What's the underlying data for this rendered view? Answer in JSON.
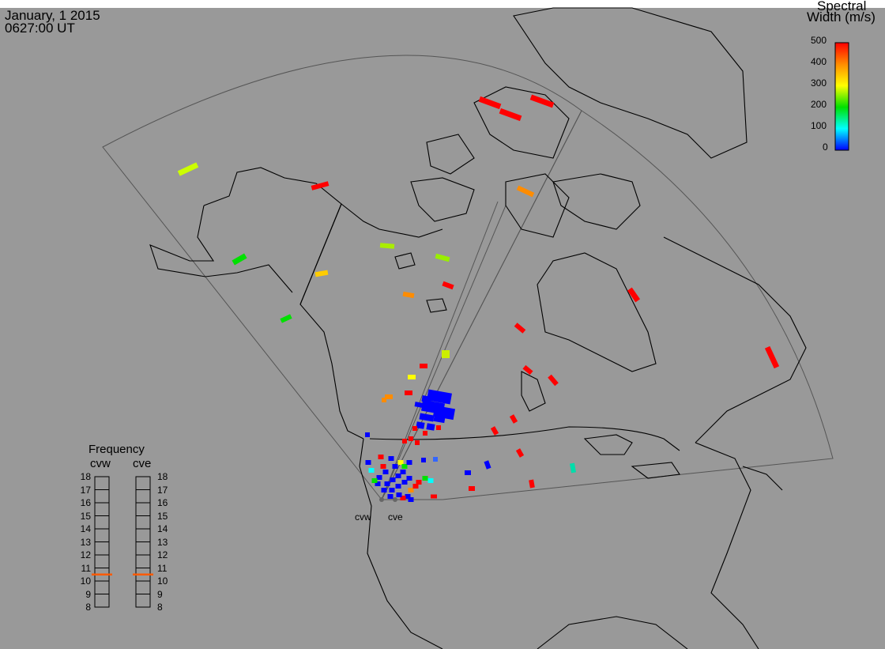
{
  "header": {
    "date": "January, 1 2015",
    "time": "0627:00 UT"
  },
  "legend": {
    "title_line1": "Spectral",
    "title_line2": "Width (m/s)",
    "ticks": [
      "500",
      "400",
      "300",
      "200",
      "100",
      "0"
    ],
    "range": [
      0,
      500
    ],
    "colors": [
      "#ff0000",
      "#ff8c00",
      "#ffff00",
      "#00e000",
      "#00ffff",
      "#0000ff"
    ]
  },
  "frequency": {
    "title": "Frequency",
    "radars": [
      {
        "name": "cvw",
        "value": 10.5
      },
      {
        "name": "cve",
        "value": 10.5
      }
    ],
    "scale": [
      "18",
      "17",
      "16",
      "15",
      "14",
      "13",
      "12",
      "11",
      "10",
      "9",
      "8"
    ],
    "range": [
      8,
      18
    ],
    "marker_color": "#ff5a00"
  },
  "radar_labels": [
    "cvw",
    "cve"
  ],
  "map": {
    "background": "#999999",
    "coast_color": "#000000",
    "fov_color": "#555555"
  }
}
